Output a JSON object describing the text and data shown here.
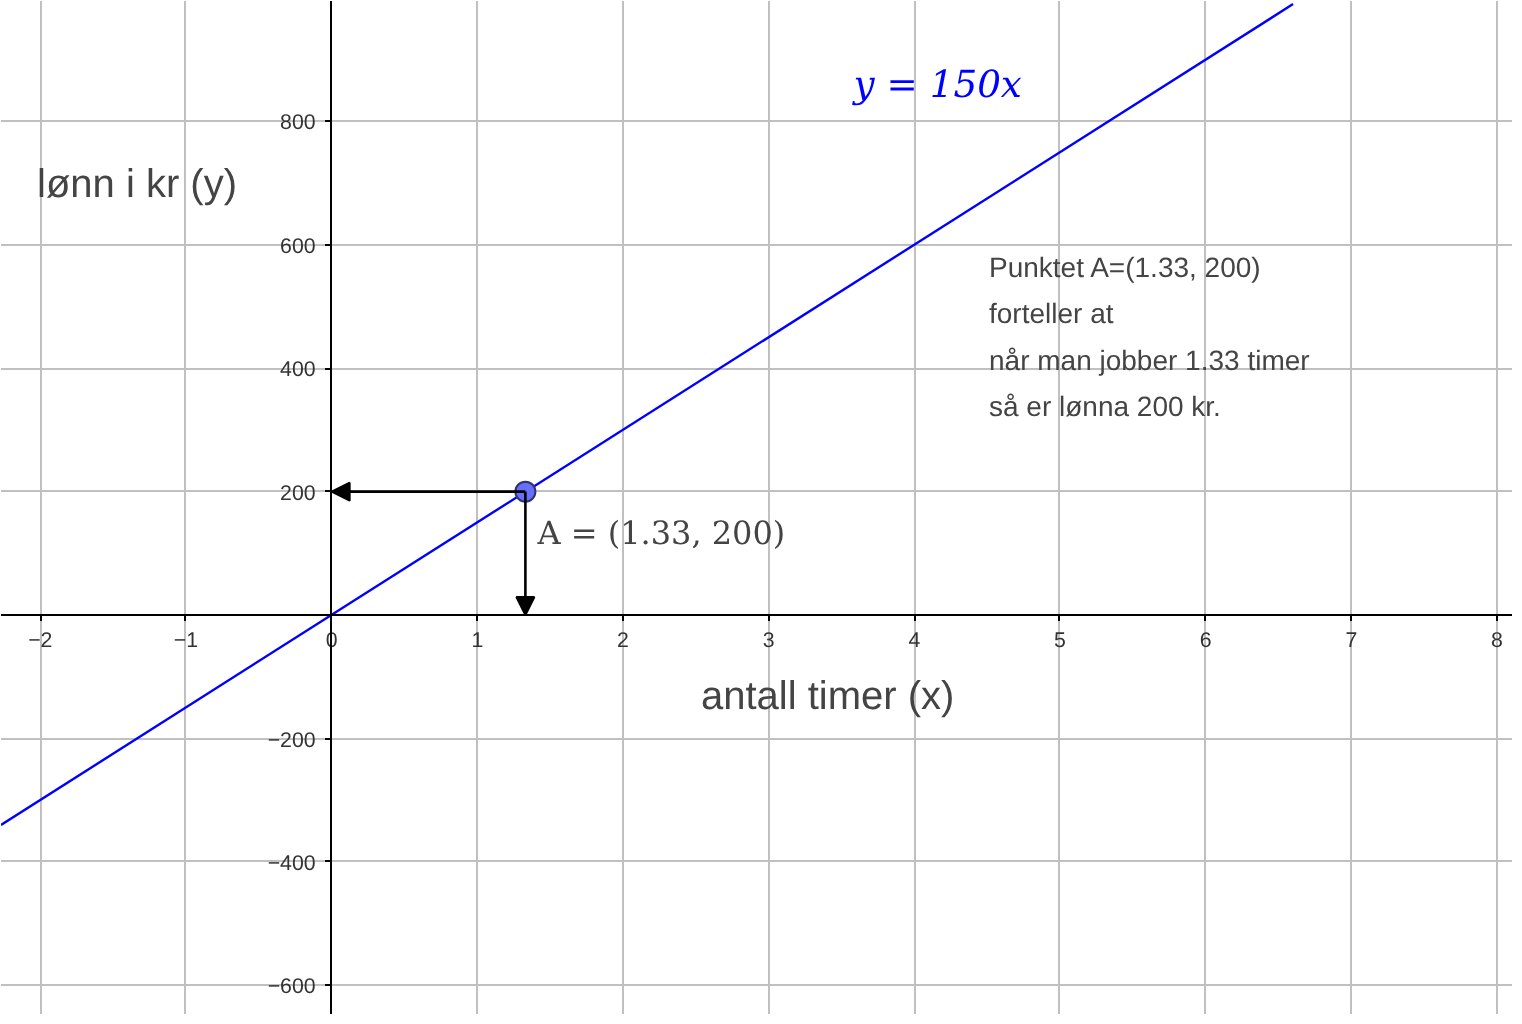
{
  "chart_data": {
    "type": "line",
    "xlabel": "antall timer (x)",
    "ylabel": "lønn i kr (y)",
    "xlim": [
      -2.27,
      8.11
    ],
    "ylim": [
      -648,
      995
    ],
    "xticks": [
      {
        "value": -2,
        "label": "−2"
      },
      {
        "value": -1,
        "label": "−1"
      },
      0,
      1,
      2,
      3,
      4,
      5,
      6,
      7,
      8
    ],
    "yticks": [
      {
        "value": -600,
        "label": "−600"
      },
      {
        "value": -400,
        "label": "−400"
      },
      {
        "value": -200,
        "label": "−200"
      },
      200,
      400,
      600,
      800
    ],
    "grid": true,
    "series": [
      {
        "name": "y = 150x",
        "color": "#0000ff",
        "x": [
          -2.27,
          6.6
        ],
        "values": [
          -340,
          990
        ]
      },
      {
        "type": "scatter",
        "color": "#6670ff",
        "marker": "circle",
        "x": [
          1.33
        ],
        "values": [
          200
        ]
      }
    ],
    "annotations": [
      {
        "text": "A = (1.33, 200)",
        "x": 1.33,
        "y": 200
      },
      "Punktet A=(1.33, 200)\nforteller at\nnår man jobber 1.33 timer\nså er lønna 200 kr."
    ]
  }
}
